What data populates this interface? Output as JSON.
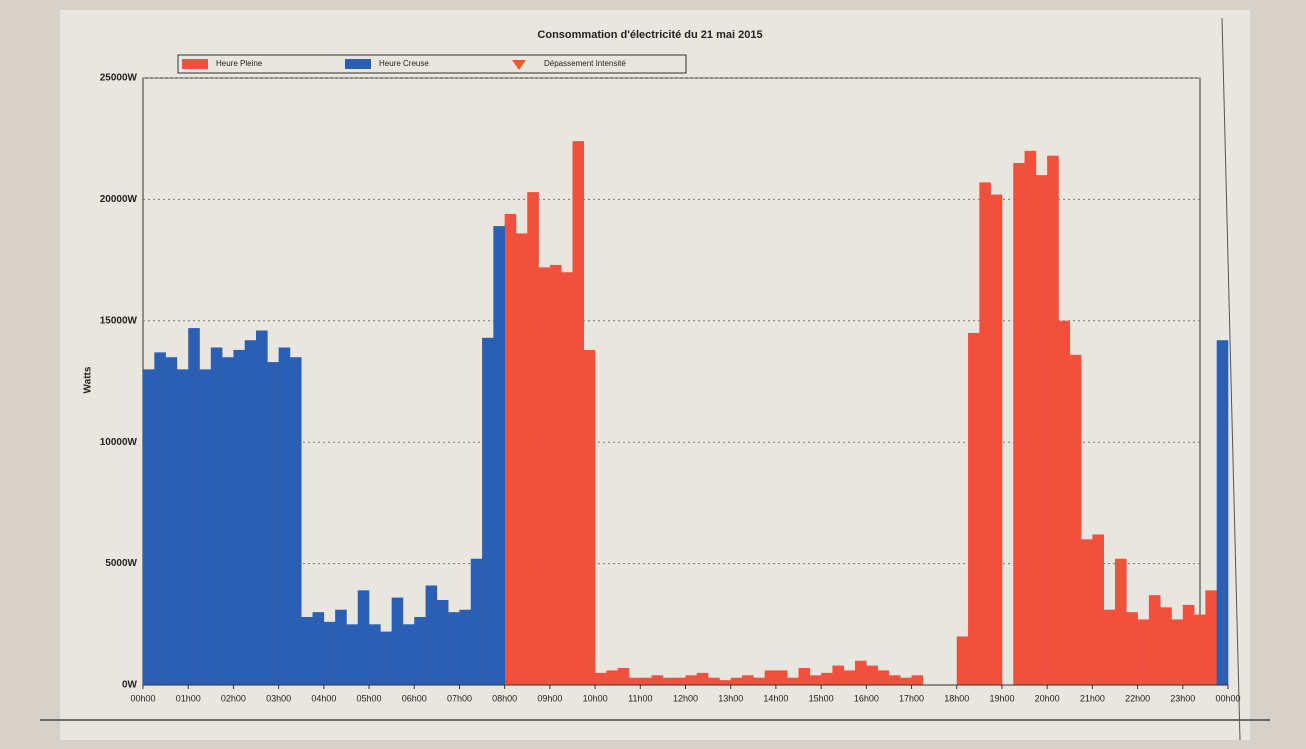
{
  "chart_data": {
    "type": "bar",
    "title": "Consommation d'électricité du 21 mai 2015",
    "y_label": "Watts",
    "x": [
      0,
      0.25,
      0.5,
      0.75,
      1,
      1.25,
      1.5,
      1.75,
      2,
      2.25,
      2.5,
      2.75,
      3,
      3.25,
      3.5,
      3.75,
      4,
      4.25,
      4.5,
      4.75,
      5,
      5.25,
      5.5,
      5.75,
      6,
      6.25,
      6.5,
      6.75,
      7,
      7.25,
      7.5,
      7.75,
      8,
      8.25,
      8.5,
      8.75,
      9,
      9.25,
      9.5,
      9.75,
      10,
      10.25,
      10.5,
      10.75,
      11,
      11.25,
      11.5,
      11.75,
      12,
      12.25,
      12.5,
      12.75,
      13,
      13.25,
      13.5,
      13.75,
      14,
      14.25,
      14.5,
      14.75,
      15,
      15.25,
      15.5,
      15.75,
      16,
      16.25,
      16.5,
      16.75,
      17,
      17.25,
      17.5,
      17.75,
      18,
      18.25,
      18.5,
      18.75,
      19,
      19.25,
      19.5,
      19.75,
      20,
      20.25,
      20.5,
      20.75,
      21,
      21.25,
      21.5,
      21.75,
      22,
      22.25,
      22.5,
      22.75,
      23,
      23.25,
      23.5,
      23.75
    ],
    "series": [
      {
        "name": "Heure Pleine",
        "color": "#f0503c",
        "marker": "square",
        "values": [
          null,
          null,
          null,
          null,
          null,
          null,
          null,
          null,
          null,
          null,
          null,
          null,
          null,
          null,
          null,
          null,
          null,
          null,
          null,
          null,
          null,
          null,
          null,
          null,
          null,
          null,
          null,
          null,
          null,
          null,
          null,
          null,
          19400,
          18600,
          20300,
          17200,
          17300,
          17000,
          22400,
          13800,
          500,
          600,
          700,
          300,
          300,
          400,
          300,
          300,
          400,
          500,
          300,
          200,
          300,
          400,
          300,
          600,
          600,
          300,
          700,
          400,
          500,
          800,
          600,
          1000,
          800,
          600,
          400,
          300,
          400,
          null,
          null,
          null,
          2000,
          14500,
          20700,
          20200,
          null,
          21500,
          22000,
          21000,
          21800,
          15000,
          13600,
          6000,
          6200,
          3100,
          5200,
          3000,
          2700,
          3700,
          3200,
          2700,
          3300,
          2900,
          3900,
          null
        ]
      },
      {
        "name": "Heure Creuse",
        "color": "#2b5fb4",
        "marker": "square",
        "values": [
          13000,
          13700,
          13500,
          13000,
          14700,
          13000,
          13900,
          13500,
          13800,
          14200,
          14600,
          13300,
          13900,
          13500,
          2800,
          3000,
          2600,
          3100,
          2500,
          3900,
          2500,
          2200,
          3600,
          2500,
          2800,
          4100,
          3500,
          3000,
          3100,
          5200,
          14300,
          18900,
          null,
          null,
          null,
          null,
          null,
          null,
          null,
          null,
          null,
          null,
          null,
          null,
          null,
          null,
          null,
          null,
          null,
          null,
          null,
          null,
          null,
          null,
          null,
          null,
          null,
          null,
          null,
          null,
          null,
          null,
          null,
          null,
          null,
          null,
          null,
          null,
          null,
          null,
          null,
          null,
          null,
          null,
          null,
          null,
          null,
          null,
          null,
          null,
          null,
          null,
          null,
          null,
          null,
          null,
          null,
          null,
          null,
          null,
          null,
          null,
          null,
          null,
          null,
          14200
        ]
      },
      {
        "name": "Dépassement Intensité",
        "color": "#f05a28",
        "marker": "triangle",
        "values": [
          null,
          null,
          null,
          null,
          null,
          null,
          null,
          null,
          null,
          null,
          null,
          null,
          null,
          null,
          null,
          null,
          null,
          null,
          null,
          null,
          null,
          null,
          null,
          null,
          null,
          null,
          null,
          null,
          null,
          null,
          null,
          null,
          null,
          null,
          null,
          null,
          null,
          null,
          null,
          null,
          null,
          null,
          null,
          null,
          null,
          null,
          null,
          null,
          null,
          null,
          null,
          null,
          null,
          null,
          null,
          null,
          null,
          null,
          null,
          null,
          null,
          null,
          null,
          null,
          null,
          null,
          null,
          null,
          null,
          null,
          null,
          null,
          null,
          null,
          null,
          null,
          null,
          null,
          null,
          null,
          null,
          null,
          null,
          null,
          null,
          null,
          null,
          null,
          null,
          null,
          null,
          null,
          null,
          null,
          null,
          null
        ]
      }
    ],
    "xlim": [
      0,
      24
    ],
    "xticks": [
      {
        "value": 0,
        "label": "00h00"
      },
      {
        "value": 1,
        "label": "01h00"
      },
      {
        "value": 2,
        "label": "02h00"
      },
      {
        "value": 3,
        "label": "03h00"
      },
      {
        "value": 4,
        "label": "04h00"
      },
      {
        "value": 5,
        "label": "05h00"
      },
      {
        "value": 6,
        "label": "06h00"
      },
      {
        "value": 7,
        "label": "07h00"
      },
      {
        "value": 8,
        "label": "08h00"
      },
      {
        "value": 9,
        "label": "09h00"
      },
      {
        "value": 10,
        "label": "10h00"
      },
      {
        "value": 11,
        "label": "11h00"
      },
      {
        "value": 12,
        "label": "12h00"
      },
      {
        "value": 13,
        "label": "13h00"
      },
      {
        "value": 14,
        "label": "14h00"
      },
      {
        "value": 15,
        "label": "15h00"
      },
      {
        "value": 16,
        "label": "16h00"
      },
      {
        "value": 17,
        "label": "17h00"
      },
      {
        "value": 18,
        "label": "18h00"
      },
      {
        "value": 19,
        "label": "19h00"
      },
      {
        "value": 20,
        "label": "20h00"
      },
      {
        "value": 21,
        "label": "21h00"
      },
      {
        "value": 22,
        "label": "22h00"
      },
      {
        "value": 23,
        "label": "23h00"
      },
      {
        "value": 24,
        "label": "00h00"
      }
    ],
    "ylim": [
      0,
      25000
    ],
    "yticks": [
      {
        "value": 0,
        "label": "0W"
      },
      {
        "value": 5000,
        "label": "5000W"
      },
      {
        "value": 10000,
        "label": "10000W"
      },
      {
        "value": 15000,
        "label": "15000W"
      },
      {
        "value": 20000,
        "label": "20000W"
      },
      {
        "value": 25000,
        "label": "25000W"
      }
    ],
    "grid": true
  }
}
